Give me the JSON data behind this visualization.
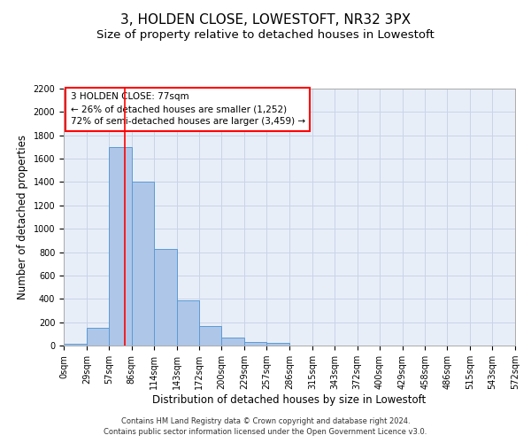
{
  "title": "3, HOLDEN CLOSE, LOWESTOFT, NR32 3PX",
  "subtitle": "Size of property relative to detached houses in Lowestoft",
  "xlabel": "Distribution of detached houses by size in Lowestoft",
  "ylabel": "Number of detached properties",
  "bar_edges": [
    0,
    29,
    57,
    86,
    114,
    143,
    172,
    200,
    229,
    257,
    286,
    315,
    343,
    372,
    400,
    429,
    458,
    486,
    515,
    543,
    572
  ],
  "bar_heights": [
    15,
    155,
    1700,
    1400,
    830,
    390,
    165,
    65,
    30,
    25,
    0,
    0,
    0,
    0,
    0,
    0,
    0,
    0,
    0,
    0
  ],
  "bar_color": "#aec6e8",
  "bar_edgecolor": "#5b9bd5",
  "vline_x": 77,
  "vline_color": "red",
  "annotation_line1": "3 HOLDEN CLOSE: 77sqm",
  "annotation_line2": "← 26% of detached houses are smaller (1,252)",
  "annotation_line3": "72% of semi-detached houses are larger (3,459) →",
  "ylim": [
    0,
    2200
  ],
  "yticks": [
    0,
    200,
    400,
    600,
    800,
    1000,
    1200,
    1400,
    1600,
    1800,
    2000,
    2200
  ],
  "xtick_labels": [
    "0sqm",
    "29sqm",
    "57sqm",
    "86sqm",
    "114sqm",
    "143sqm",
    "172sqm",
    "200sqm",
    "229sqm",
    "257sqm",
    "286sqm",
    "315sqm",
    "343sqm",
    "372sqm",
    "400sqm",
    "429sqm",
    "458sqm",
    "486sqm",
    "515sqm",
    "543sqm",
    "572sqm"
  ],
  "grid_color": "#c8d4e8",
  "background_color": "#e8eef8",
  "footer_line1": "Contains HM Land Registry data © Crown copyright and database right 2024.",
  "footer_line2": "Contains public sector information licensed under the Open Government Licence v3.0.",
  "title_fontsize": 11,
  "subtitle_fontsize": 9.5,
  "axis_label_fontsize": 8.5,
  "tick_fontsize": 7,
  "annotation_fontsize": 7.5,
  "footer_fontsize": 6
}
